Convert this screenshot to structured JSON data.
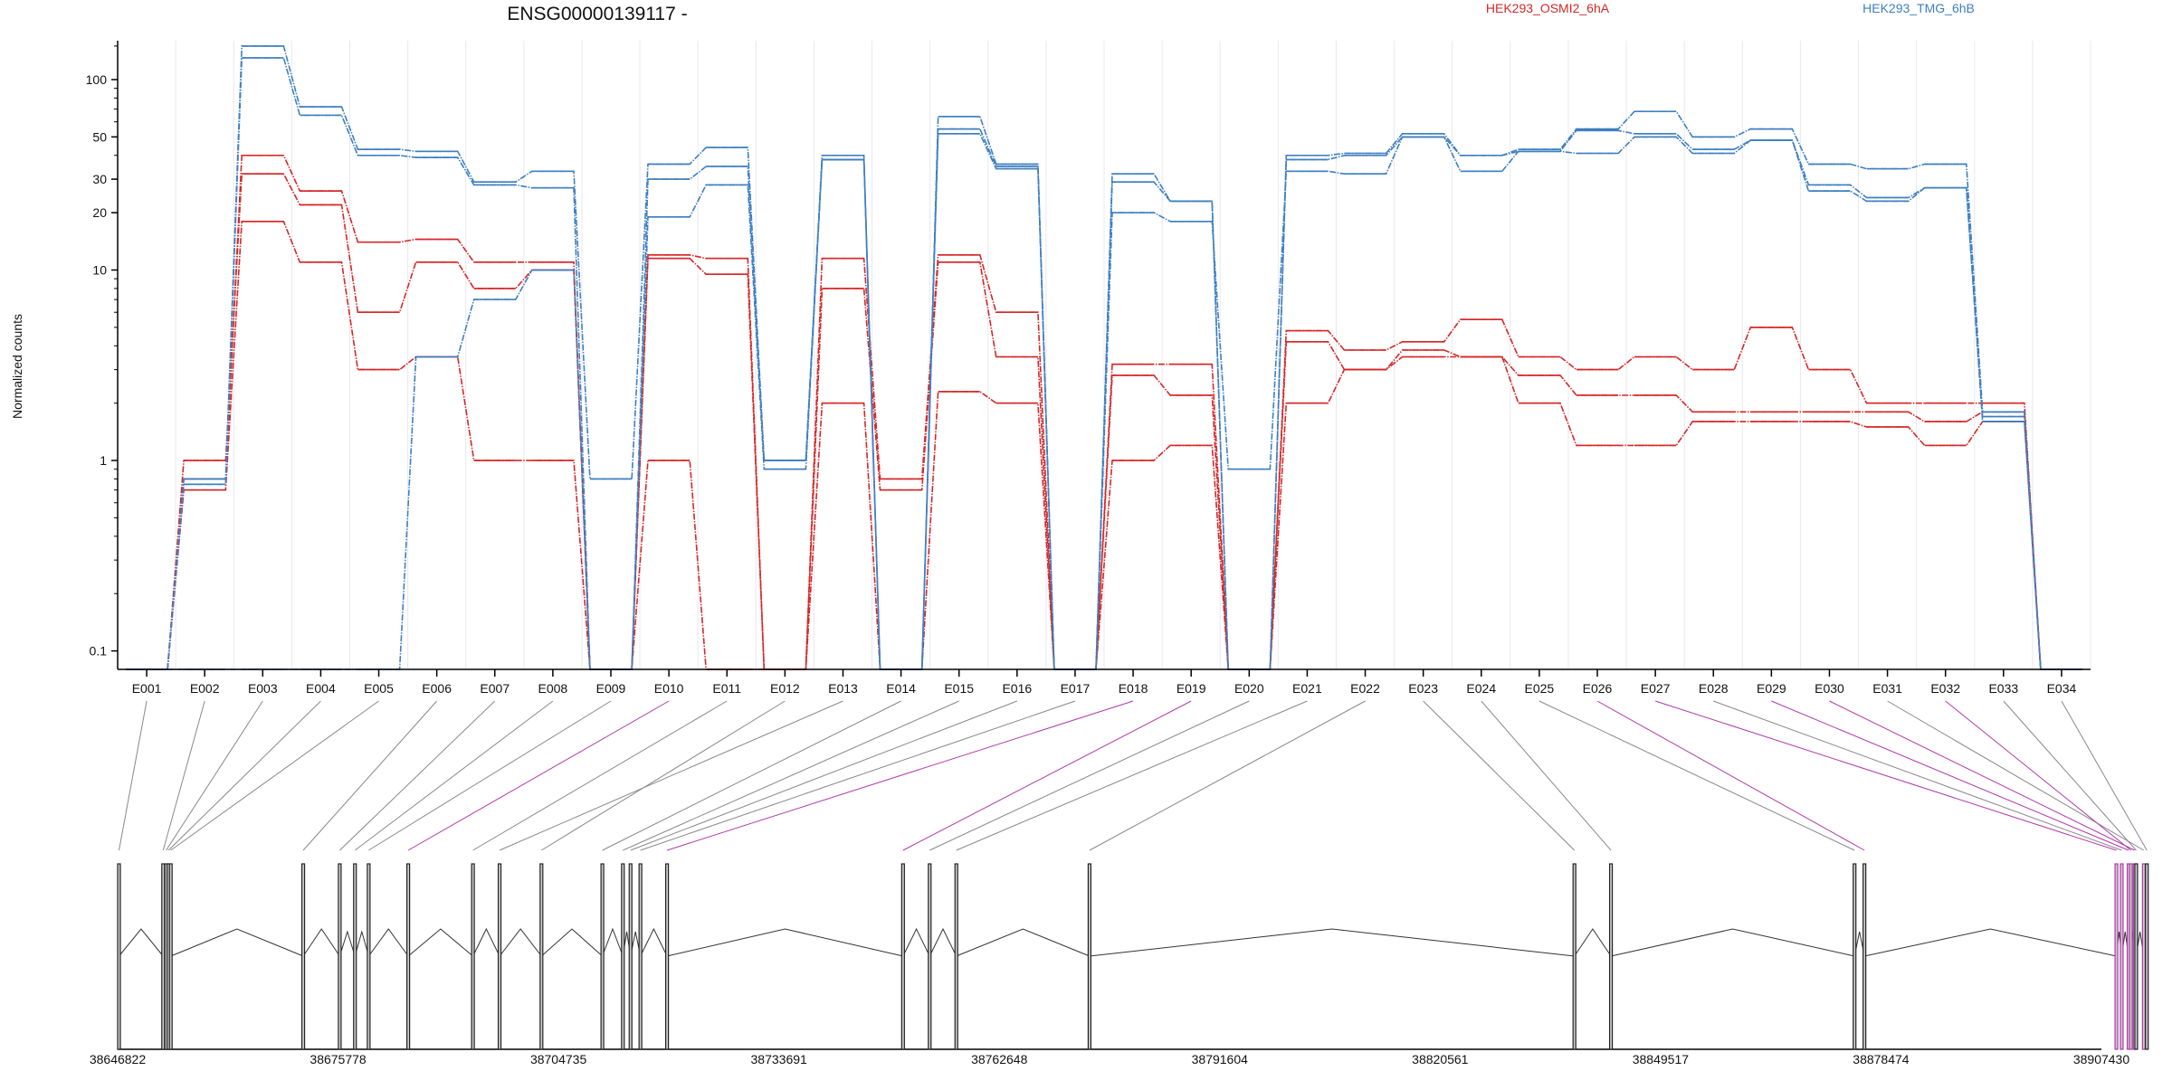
{
  "chart_data": {
    "type": "line",
    "title": "ENSG00000139117 -",
    "ylabel": "Normalized counts",
    "xlabel": "",
    "y_scale": "log",
    "ylim": [
      0.08,
      160
    ],
    "y_ticks": [
      "100",
      "50",
      "30",
      "20",
      "10",
      "1",
      "0.1"
    ],
    "y_tick_values": [
      100,
      50,
      30,
      20,
      10,
      1,
      0.1
    ],
    "categories": [
      "E001",
      "E002",
      "E003",
      "E004",
      "E005",
      "E006",
      "E007",
      "E008",
      "E009",
      "E010",
      "E011",
      "E012",
      "E013",
      "E014",
      "E015",
      "E016",
      "E017",
      "E018",
      "E019",
      "E020",
      "E021",
      "E022",
      "E023",
      "E024",
      "E025",
      "E026",
      "E027",
      "E028",
      "E029",
      "E030",
      "E031",
      "E032",
      "E033",
      "E034"
    ],
    "grid": "vertical",
    "legend": [
      "HEK293_OSMI2_6hA",
      "HEK293_TMG_6hB"
    ],
    "series": [
      {
        "name": "HEK293_OSMI2_6hA",
        "color": "#d62728",
        "values": [
          0.08,
          0.8,
          40,
          26,
          14,
          14.5,
          11,
          11,
          0.08,
          12,
          11.5,
          0.08,
          11.5,
          0.8,
          12,
          6,
          0.08,
          3.2,
          3.2,
          0.08,
          4.8,
          3.8,
          4.2,
          5.5,
          3.5,
          3,
          3.5,
          3,
          5,
          3,
          2,
          2,
          2,
          0.08
        ]
      },
      {
        "name": "HEK293_OSMI2_6hA",
        "color": "#d62728",
        "values": [
          0.08,
          1,
          32,
          22,
          6,
          11,
          8,
          10,
          0.08,
          11.5,
          9.5,
          0.08,
          8,
          0.7,
          11,
          3.5,
          0.08,
          2.8,
          2.2,
          0.08,
          4.2,
          3,
          3.8,
          3.5,
          2.8,
          2.2,
          2.2,
          1.8,
          1.8,
          1.8,
          1.8,
          1.6,
          1.8,
          0.08
        ]
      },
      {
        "name": "HEK293_OSMI2_6hA",
        "color": "#d62728",
        "values": [
          0.08,
          0.7,
          18,
          11,
          3,
          3.5,
          1,
          1,
          0.08,
          1,
          0.08,
          0.08,
          2,
          0.08,
          2.3,
          2,
          0.08,
          1,
          1.2,
          0.08,
          2,
          3,
          3.5,
          3.5,
          2,
          1.2,
          1.2,
          1.6,
          1.6,
          1.6,
          1.5,
          1.2,
          1.6,
          0.08
        ]
      },
      {
        "name": "HEK293_TMG_6hB",
        "color": "#3e7fc0",
        "values": [
          0.08,
          0.8,
          150,
          72,
          43,
          42,
          29,
          33,
          0.8,
          36,
          44,
          1,
          40,
          0.08,
          64,
          36,
          0.08,
          32,
          23,
          0.08,
          40,
          41,
          52,
          40,
          43,
          55,
          68,
          50,
          55,
          36,
          34,
          36,
          1.8,
          0.08
        ]
      },
      {
        "name": "HEK293_TMG_6hB",
        "color": "#3e7fc0",
        "values": [
          0.08,
          0.75,
          130,
          65,
          40,
          39,
          28,
          27,
          0.08,
          30,
          35,
          1,
          38,
          0.08,
          55,
          35,
          0.08,
          29,
          23,
          0.08,
          38,
          40,
          50,
          40,
          42,
          54,
          52,
          43,
          48,
          28,
          24,
          27,
          1.6,
          0.08
        ]
      },
      {
        "name": "HEK293_TMG_6hB",
        "color": "#3e7fc0",
        "values": [
          0.08,
          0.08,
          0.08,
          0.08,
          0.08,
          3.5,
          7,
          10,
          0.08,
          19,
          28,
          0.9,
          38,
          0.08,
          52,
          34,
          0.08,
          20,
          18,
          0.9,
          33,
          32,
          50,
          33,
          42,
          41,
          50,
          41,
          48,
          26,
          23,
          27,
          1.7,
          0.08
        ]
      }
    ],
    "genomic_coordinates": [
      "38646822",
      "38675778",
      "38704735",
      "38733691",
      "38762648",
      "38791604",
      "38820561",
      "38849517",
      "38878474",
      "38907430"
    ],
    "genomic_range": [
      38646822,
      38907430
    ],
    "exon_positions": [
      38647000,
      38652800,
      38653200,
      38653500,
      38653800,
      38671200,
      38676000,
      38678000,
      38679800,
      38685000,
      38693500,
      38702500,
      38697000,
      38710500,
      38713200,
      38714200,
      38715500,
      38719000,
      38750000,
      38753500,
      38757000,
      38774500,
      38838200,
      38843000,
      38875000,
      38876300,
      38909400,
      38910100,
      38911000,
      38911800,
      38913000,
      38911300,
      38912000,
      38913400
    ]
  }
}
